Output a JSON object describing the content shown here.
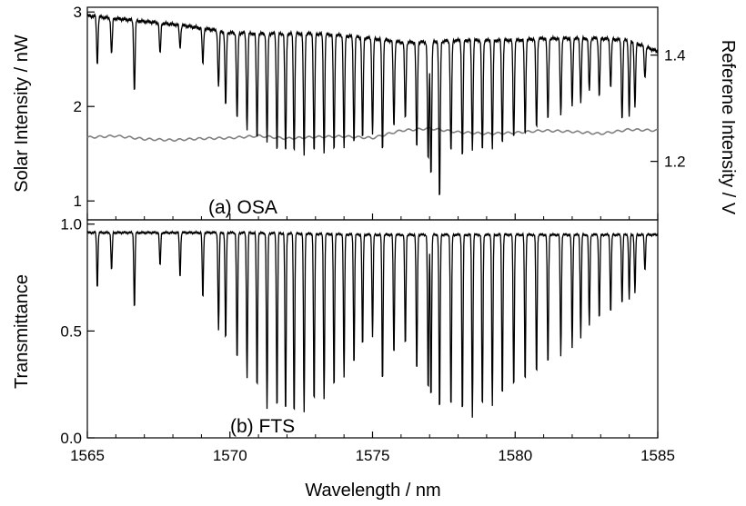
{
  "chart_data": [
    {
      "type": "line",
      "title": "",
      "annotation": "(a) OSA",
      "xlabel": "",
      "ylabel": "Solar Intensity / nW",
      "ylabel_right": "Referene Intensity / V",
      "xlim": [
        1565,
        1585
      ],
      "ylim": [
        0.8,
        3.05
      ],
      "ylim_right": [
        1.09,
        1.49
      ],
      "yticks": [
        1,
        2,
        3
      ],
      "yticks_right": [
        1.2,
        1.4
      ],
      "grid": false,
      "legend": "none",
      "continuum_points": {
        "x": [
          1565,
          1566,
          1567,
          1568,
          1569,
          1570,
          1571,
          1572,
          1573,
          1574,
          1575,
          1576,
          1577,
          1578,
          1579,
          1580,
          1581,
          1582,
          1583,
          1584,
          1585
        ],
        "y": [
          2.96,
          2.93,
          2.9,
          2.87,
          2.83,
          2.78,
          2.77,
          2.77,
          2.77,
          2.75,
          2.72,
          2.68,
          2.68,
          2.7,
          2.7,
          2.7,
          2.72,
          2.72,
          2.72,
          2.7,
          2.58
        ]
      },
      "absorption_lines": {
        "center_nm": [
          1565.35,
          1565.85,
          1566.65,
          1567.55,
          1568.25,
          1569.05,
          1569.6,
          1569.85,
          1570.25,
          1570.6,
          1570.95,
          1571.3,
          1571.65,
          1571.95,
          1572.25,
          1572.6,
          1572.95,
          1573.3,
          1573.65,
          1574.0,
          1574.35,
          1574.65,
          1575.0,
          1575.35,
          1575.75,
          1576.15,
          1576.55,
          1576.95,
          1577.05,
          1577.35,
          1577.75,
          1578.15,
          1578.5,
          1578.85,
          1579.2,
          1579.55,
          1579.95,
          1580.35,
          1580.75,
          1581.15,
          1581.6,
          1582.0,
          1582.3,
          1582.6,
          1582.95,
          1583.35,
          1583.75,
          1584.0,
          1584.2,
          1584.55
        ],
        "min_intensity_nW": [
          2.45,
          2.55,
          2.15,
          2.55,
          2.62,
          2.45,
          2.2,
          2.0,
          1.85,
          1.75,
          1.65,
          1.6,
          1.52,
          1.5,
          1.5,
          1.48,
          1.5,
          1.5,
          1.52,
          1.55,
          1.6,
          1.65,
          1.7,
          1.52,
          1.78,
          1.85,
          1.55,
          1.4,
          1.25,
          1.0,
          1.5,
          1.45,
          1.55,
          1.5,
          1.55,
          1.6,
          1.65,
          1.7,
          1.75,
          1.85,
          1.9,
          2.0,
          2.05,
          2.15,
          2.1,
          2.2,
          1.85,
          1.9,
          2.0,
          2.3
        ]
      },
      "reference_signal": {
        "x": [
          1565,
          1566,
          1567,
          1568,
          1569,
          1570,
          1571,
          1572,
          1573,
          1574,
          1575,
          1576,
          1577,
          1578,
          1579,
          1580,
          1581,
          1582,
          1583,
          1584,
          1585
        ],
        "y": [
          1.245,
          1.248,
          1.242,
          1.24,
          1.243,
          1.244,
          1.248,
          1.243,
          1.246,
          1.247,
          1.244,
          1.258,
          1.262,
          1.255,
          1.252,
          1.254,
          1.258,
          1.256,
          1.252,
          1.26,
          1.258
        ]
      }
    },
    {
      "type": "line",
      "title": "",
      "annotation": "(b) FTS",
      "xlabel": "Wavelength / nm",
      "ylabel": "Transmittance",
      "xlim": [
        1565,
        1585
      ],
      "ylim": [
        0.0,
        1.02
      ],
      "yticks": [
        "0.0",
        "0.5",
        "1.0"
      ],
      "xticks": [
        1565,
        1570,
        1575,
        1580,
        1585
      ],
      "grid": false,
      "legend": "none",
      "continuum_points": {
        "x": [
          1565,
          1570,
          1575,
          1580,
          1585
        ],
        "y": [
          0.96,
          0.96,
          0.95,
          0.95,
          0.95
        ]
      },
      "absorption_lines": {
        "center_nm": [
          1565.35,
          1565.85,
          1566.65,
          1567.55,
          1568.25,
          1569.05,
          1569.6,
          1569.85,
          1570.25,
          1570.6,
          1570.95,
          1571.3,
          1571.65,
          1571.95,
          1572.25,
          1572.6,
          1572.95,
          1573.3,
          1573.65,
          1574.0,
          1574.35,
          1574.65,
          1575.0,
          1575.35,
          1575.75,
          1576.15,
          1576.55,
          1576.95,
          1577.05,
          1577.35,
          1577.75,
          1578.15,
          1578.5,
          1578.85,
          1579.2,
          1579.55,
          1579.95,
          1580.35,
          1580.75,
          1581.15,
          1581.6,
          1582.0,
          1582.3,
          1582.6,
          1582.95,
          1583.35,
          1583.75,
          1584.0,
          1584.2,
          1584.55
        ],
        "min_transmittance": [
          0.7,
          0.78,
          0.6,
          0.8,
          0.75,
          0.65,
          0.5,
          0.45,
          0.35,
          0.28,
          0.22,
          0.13,
          0.12,
          0.1,
          0.09,
          0.12,
          0.15,
          0.18,
          0.22,
          0.28,
          0.33,
          0.42,
          0.47,
          0.25,
          0.38,
          0.42,
          0.3,
          0.2,
          0.17,
          0.11,
          0.12,
          0.1,
          0.1,
          0.12,
          0.15,
          0.18,
          0.22,
          0.25,
          0.28,
          0.33,
          0.38,
          0.42,
          0.47,
          0.52,
          0.55,
          0.58,
          0.62,
          0.65,
          0.68,
          0.78
        ]
      }
    }
  ]
}
